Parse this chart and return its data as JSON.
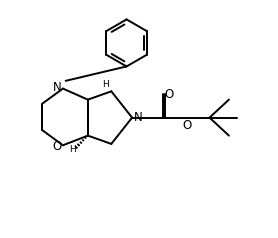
{
  "background_color": "#ffffff",
  "line_color": "#000000",
  "line_width": 1.4,
  "figsize": [
    2.78,
    2.38
  ],
  "dpi": 100,
  "xlim": [
    0,
    10
  ],
  "ylim": [
    0,
    8.5
  ]
}
